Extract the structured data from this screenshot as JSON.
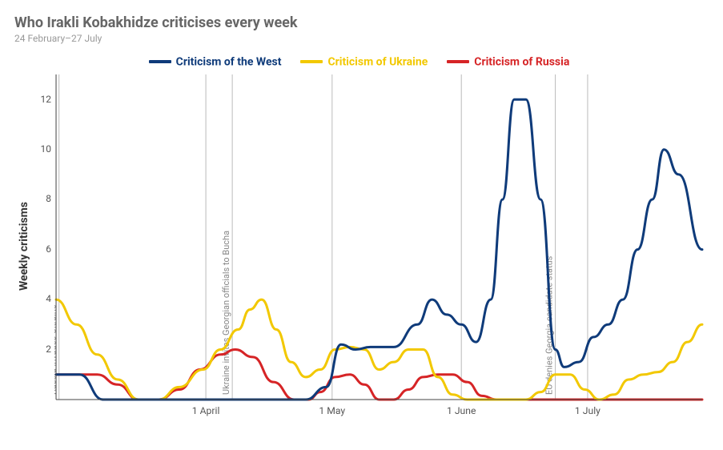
{
  "title": "Who Irakli Kobakhidze criticises every week",
  "subtitle": "24 February–27 July",
  "background_color": "#ffffff",
  "text_color_title": "#666666",
  "text_color_subtitle": "#999999",
  "chart": {
    "type": "line",
    "y_axis_label": "Weekly criticisms",
    "ylim": [
      0,
      13
    ],
    "ytick_positions": [
      2,
      4,
      6,
      8,
      10,
      12
    ],
    "x_ticks": [
      {
        "t": 5.1,
        "label": "1 April"
      },
      {
        "t": 9.4,
        "label": "1 May"
      },
      {
        "t": 13.8,
        "label": "1 June"
      },
      {
        "t": 18.1,
        "label": "1 July"
      }
    ],
    "x_range": [
      0,
      22
    ],
    "grid_color": "#bbbbbb",
    "axis_color": "#444444",
    "line_width": 3,
    "events": [
      {
        "t": 0.1,
        "label": "Russia invades Ukraine"
      },
      {
        "t": 6.0,
        "label": "Ukraine invites Georgian officials to Bucha"
      },
      {
        "t": 17.0,
        "label": "EU denies Georgia candidate status"
      }
    ],
    "series": [
      {
        "name": "Criticism of the West",
        "color": "#0f3b7a",
        "data": [
          [
            0,
            1
          ],
          [
            0.8,
            1
          ],
          [
            1.6,
            0
          ],
          [
            2.5,
            0
          ],
          [
            3.5,
            0
          ],
          [
            4.5,
            0
          ],
          [
            5.5,
            0
          ],
          [
            6.5,
            0
          ],
          [
            7.5,
            0
          ],
          [
            8.5,
            0
          ],
          [
            9.2,
            0.5
          ],
          [
            9.7,
            2.2
          ],
          [
            10.2,
            2
          ],
          [
            10.7,
            2.1
          ],
          [
            11.5,
            2.1
          ],
          [
            12.3,
            3
          ],
          [
            12.8,
            4
          ],
          [
            13.3,
            3.4
          ],
          [
            13.8,
            3.0
          ],
          [
            14.3,
            2.3
          ],
          [
            14.8,
            4
          ],
          [
            15.2,
            8
          ],
          [
            15.6,
            12
          ],
          [
            16.0,
            12
          ],
          [
            16.5,
            8
          ],
          [
            17.0,
            2
          ],
          [
            17.3,
            1.3
          ],
          [
            17.8,
            1.5
          ],
          [
            18.3,
            2.5
          ],
          [
            18.8,
            3
          ],
          [
            19.3,
            4
          ],
          [
            19.8,
            6
          ],
          [
            20.3,
            8
          ],
          [
            20.7,
            10
          ],
          [
            21.2,
            9
          ],
          [
            22,
            6
          ]
        ]
      },
      {
        "name": "Criticism of Ukraine",
        "color": "#f2c800",
        "data": [
          [
            0,
            4
          ],
          [
            0.7,
            3
          ],
          [
            1.4,
            1.8
          ],
          [
            2.1,
            0.8
          ],
          [
            2.8,
            0
          ],
          [
            3.5,
            0
          ],
          [
            4.2,
            0.5
          ],
          [
            5.0,
            1.2
          ],
          [
            5.6,
            2
          ],
          [
            6.2,
            2.8
          ],
          [
            6.6,
            3.6
          ],
          [
            7.0,
            4
          ],
          [
            7.5,
            2.8
          ],
          [
            8.0,
            1.5
          ],
          [
            8.5,
            0.9
          ],
          [
            9.0,
            1.2
          ],
          [
            9.5,
            2
          ],
          [
            10.0,
            2.1
          ],
          [
            10.5,
            2
          ],
          [
            11.0,
            1.2
          ],
          [
            11.5,
            1.5
          ],
          [
            12.0,
            2
          ],
          [
            12.5,
            2
          ],
          [
            13.0,
            0.9
          ],
          [
            13.5,
            0.2
          ],
          [
            14.0,
            0
          ],
          [
            14.5,
            0
          ],
          [
            15.0,
            0
          ],
          [
            15.5,
            0
          ],
          [
            16.0,
            0
          ],
          [
            16.5,
            0.3
          ],
          [
            17.0,
            1
          ],
          [
            17.5,
            1
          ],
          [
            18.0,
            0.4
          ],
          [
            18.5,
            0
          ],
          [
            19.0,
            0.2
          ],
          [
            19.5,
            0.8
          ],
          [
            20.0,
            1
          ],
          [
            20.5,
            1.1
          ],
          [
            21.0,
            1.5
          ],
          [
            21.5,
            2.3
          ],
          [
            22,
            3
          ]
        ]
      },
      {
        "name": "Criticism of Russia",
        "color": "#d62426",
        "data": [
          [
            0,
            1
          ],
          [
            0.7,
            1
          ],
          [
            1.4,
            1
          ],
          [
            2.1,
            0.6
          ],
          [
            2.8,
            0
          ],
          [
            3.5,
            0
          ],
          [
            4.2,
            0.4
          ],
          [
            4.9,
            1.2
          ],
          [
            5.6,
            1.8
          ],
          [
            6.1,
            2
          ],
          [
            6.7,
            1.7
          ],
          [
            7.4,
            0.7
          ],
          [
            8.1,
            0
          ],
          [
            8.6,
            0
          ],
          [
            9.0,
            0.3
          ],
          [
            9.5,
            0.9
          ],
          [
            10.0,
            1
          ],
          [
            10.5,
            0.6
          ],
          [
            11.0,
            0
          ],
          [
            11.5,
            0
          ],
          [
            12.0,
            0.4
          ],
          [
            12.5,
            0.9
          ],
          [
            13.0,
            1
          ],
          [
            13.5,
            1
          ],
          [
            14.0,
            0.7
          ],
          [
            14.5,
            0.15
          ],
          [
            15.0,
            0
          ],
          [
            15.5,
            0
          ],
          [
            16.0,
            0
          ],
          [
            16.5,
            0
          ],
          [
            17.0,
            0
          ],
          [
            17.5,
            0
          ],
          [
            18.0,
            0
          ],
          [
            18.5,
            0
          ],
          [
            19.0,
            0
          ],
          [
            19.5,
            0
          ],
          [
            20.0,
            0
          ],
          [
            20.5,
            0
          ],
          [
            21.0,
            0
          ],
          [
            21.5,
            0
          ],
          [
            22,
            0
          ]
        ]
      }
    ]
  }
}
